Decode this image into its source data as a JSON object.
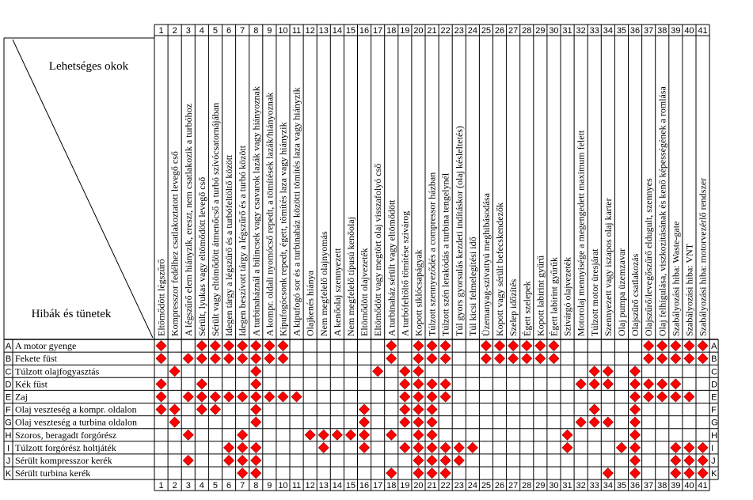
{
  "header": {
    "causes_title": "Lehetséges okok",
    "symptoms_title": "Hibák és tünetek"
  },
  "causes": [
    "Eltömődött légszűrő",
    "Kompresszor fedélhez csatlakoztatott levegő cső",
    "A légszűrő elem hiányzik, ereszt, nem csatlakozik a turbóhoz",
    "Sérült, lyukas vagy eltömődött levegő cső",
    "Sérült vagy eltömődött átmenőcső a turbó szívócsatornájában",
    "Idegen tárgy a légszűrő és a turbófeltöltő között",
    "Idegen beszívott tárgy a légszűrő és a turbó között",
    "A turbinaháznál a bilincsek vagy csavarok lazák vagy hiányoznak",
    "A kompr. oldali nyomócső repedt, a tömítések lazák/hiányoznak",
    "Kipufogócsonk repedt, égett, tömítés laza vagy hiányzik",
    "A kipufogó sor és a turbinaház közötti tömítés laza vagy hiányzik",
    "Olajkenés hiánya",
    "Nem megfelelő olajnyomás",
    "A kenőolaj szennyezett",
    "Nem megfelelő típusú kenőolaj",
    "Eltömődött olajvezeték",
    "Eltömődött vagy megtört olaj visszafolyó cső",
    "A turbinaház sérült vagy eltömődött",
    "A turbófeltöltő tömítése szivárog",
    "Kopott siklócsapágyak",
    "Túlzott szennyeződés a compressor házban",
    "Túlzott szén lerakódás a turbina tengelynél",
    "Túl gyors gyorsulás kezdeti indításkor (olaj késleltetés)",
    "Túl kicsi felmelegítési idő",
    "Üzemanyag-szivattyú meghibásodása",
    "Kopott vagy sérült befecskendezők",
    "Szelep időzítés",
    "Égett szelepek",
    "Kopott labirint gyűrű",
    "Égett labirint gyűrűk",
    "Szivárgó olajvezeték",
    "Motorolaj mennyisége a megengedett maximum felett",
    "Túlzott motor üresjárat",
    "Szennyezett vagy iszapos olaj karter",
    "Olaj pumpa üzemzavar",
    "Olajszűrő csatlakozás",
    "Olajszűrő/levegőszűrő eldugult, szennyes",
    "Olaj felhígulása, viszkozitásának és kenő képességének a romlása",
    "Szabályozási hiba: Waste-gate",
    "Szabályozási hiba: VNT",
    "Szabályozási hiba: motorvezérlő rendszer"
  ],
  "symptoms": [
    {
      "letter": "A",
      "label": "A motor gyenge",
      "marks": [
        1,
        4,
        5,
        6,
        7,
        8,
        9,
        10,
        18,
        20,
        21,
        22,
        25,
        26,
        27,
        28,
        29,
        30,
        37,
        38,
        39,
        40,
        41
      ]
    },
    {
      "letter": "B",
      "label": "Fekete füst",
      "marks": [
        1,
        3,
        4,
        5,
        6,
        7,
        8,
        9,
        10,
        18,
        20,
        21,
        22,
        25,
        26,
        27,
        28,
        29,
        30,
        37,
        38,
        39,
        40,
        41
      ]
    },
    {
      "letter": "C",
      "label": "Túlzott olajfogyasztás",
      "marks": [
        2,
        8,
        17,
        19,
        20,
        33,
        34,
        36
      ]
    },
    {
      "letter": "D",
      "label": "Kék füst",
      "marks": [
        1,
        4,
        8,
        19,
        20,
        21,
        22,
        32,
        33,
        34,
        36,
        37,
        38,
        39
      ]
    },
    {
      "letter": "E",
      "label": "Zaj",
      "marks": [
        1,
        3,
        4,
        5,
        6,
        7,
        8,
        9,
        10,
        11,
        19,
        20,
        21,
        22,
        36,
        37,
        38,
        39,
        40
      ]
    },
    {
      "letter": "F",
      "label": "Olaj veszteség a kompr. oldalon",
      "marks": [
        1,
        2,
        4,
        5,
        8,
        16,
        19,
        20,
        21,
        33,
        36
      ]
    },
    {
      "letter": "G",
      "label": "Olaj veszteség a turbina oldalon",
      "marks": [
        2,
        8,
        16,
        19,
        20,
        21,
        32,
        33,
        34,
        36
      ]
    },
    {
      "letter": "H",
      "label": "Szoros, beragadt forgórész",
      "marks": [
        3,
        7,
        12,
        13,
        14,
        15,
        16,
        18,
        20,
        21,
        31,
        36
      ]
    },
    {
      "letter": "I",
      "label": "Túlzott forgórész holtjáték",
      "marks": [
        6,
        7,
        8,
        13,
        16,
        19,
        20,
        21,
        22,
        23,
        24,
        31,
        35,
        36,
        39,
        40,
        41
      ]
    },
    {
      "letter": "J",
      "label": "Sérült kompresszor kerék",
      "marks": [
        3,
        6,
        7,
        8,
        20,
        21,
        22,
        23,
        36,
        39,
        40,
        41
      ]
    },
    {
      "letter": "K",
      "label": "Sérült turbina kerék",
      "marks": [
        7,
        8,
        18,
        20,
        21,
        22,
        34,
        36,
        39,
        40,
        41
      ]
    }
  ],
  "colors": {
    "mark": "#ff0000",
    "mark_outline": "#8b0000",
    "grid": "#000000"
  }
}
